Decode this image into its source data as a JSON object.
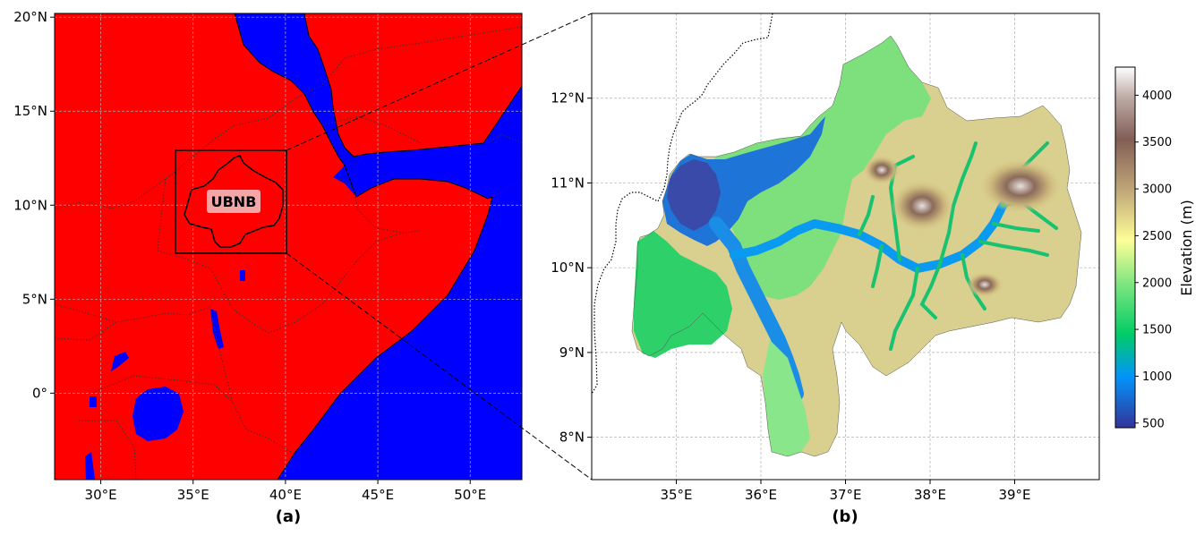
{
  "colors": {
    "land": "#ff0000",
    "water": "#0000ff",
    "grid": "#b0b0b0",
    "frame": "#000000",
    "label_box": "#f4a6a6"
  },
  "panel_a": {
    "label": "(a)",
    "basin_label": "UBNB",
    "lon_ticks": [
      "30°E",
      "35°E",
      "40°E",
      "45°E",
      "50°E"
    ],
    "lat_ticks": [
      "20°N",
      "15°N",
      "10°N",
      "5°N",
      "0°"
    ],
    "lon_range": [
      27.5,
      52.8
    ],
    "lat_range": [
      -4.6,
      20.2
    ],
    "inset_box": {
      "lon": [
        34,
        40
      ],
      "lat": [
        7.5,
        13
      ]
    }
  },
  "panel_b": {
    "label": "(b)",
    "lon_ticks": [
      "35°E",
      "36°E",
      "37°E",
      "38°E",
      "39°E"
    ],
    "lat_ticks": [
      "12°N",
      "11°N",
      "10°N",
      "9°N",
      "8°N"
    ],
    "lon_range": [
      34,
      40
    ],
    "lat_range": [
      7.5,
      13
    ]
  },
  "colorbar": {
    "title": "Elevation (m)",
    "ticks": [
      "500",
      "1000",
      "1500",
      "2000",
      "2500",
      "3000",
      "3500",
      "4000"
    ],
    "range": [
      450,
      4300
    ],
    "colormap": "terrain",
    "stops": [
      "#333399",
      "#0294fa",
      "#01cc66",
      "#80e680",
      "#fefe98",
      "#bfa677",
      "#815e56",
      "#c0aea9",
      "#ffffff"
    ]
  }
}
